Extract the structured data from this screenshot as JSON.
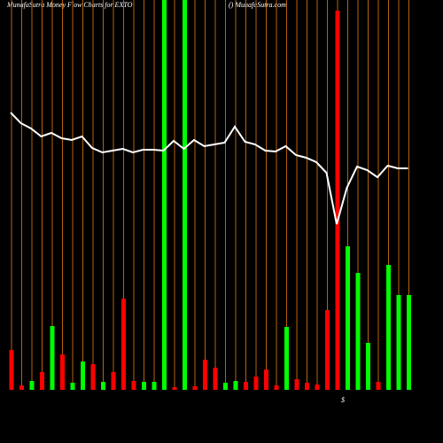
{
  "chart_data": {
    "type": "bar",
    "title": "MunafaSutra  Money Flow  Charts for EXTO",
    "subtitle": "() MunafaSutra.com",
    "annotation": "$",
    "categories": [
      null,
      null,
      null,
      null,
      null,
      null,
      null,
      null,
      null,
      null,
      null,
      null,
      null,
      null,
      null,
      null,
      null,
      null,
      null,
      null,
      null,
      null,
      null,
      null,
      null,
      null,
      null,
      null,
      null,
      null,
      null,
      null,
      null,
      null,
      null,
      null,
      null,
      null,
      null,
      null
    ],
    "ylim": [
      0,
      440
    ],
    "bar_colors": [
      "#ff0000",
      "#ff0000",
      "#00ff00",
      "#ff0000",
      "#00ff00",
      "#ff0000",
      "#00ff00",
      "#00ff00",
      "#ff0000",
      "#00ff00",
      "#ff0000",
      "#ff0000",
      "#ff0000",
      "#00ff00",
      "#00ff00",
      "#00ff00",
      "#ff0000",
      "#00ff00",
      "#ff0000",
      "#ff0000",
      "#ff0000",
      "#00ff00",
      "#00ff00",
      "#ff0000",
      "#ff0000",
      "#ff0000",
      "#ff0000",
      "#00ff00",
      "#ff0000",
      "#ff0000",
      "#ff0000",
      "#ff0000",
      "#ff0000",
      "#00ff00",
      "#00ff00",
      "#00ff00",
      "#ff0000",
      "#00ff00",
      "#00ff00",
      "#00ff00"
    ],
    "values": [
      45,
      5,
      10,
      20,
      72,
      40,
      8,
      32,
      29,
      9,
      20,
      103,
      10,
      9,
      9,
      440,
      3,
      440,
      4,
      34,
      25,
      8,
      10,
      9,
      15,
      23,
      5,
      71,
      12,
      8,
      6,
      90,
      428,
      162,
      132,
      53,
      9,
      141,
      107,
      107
    ],
    "series": [
      {
        "color": "#ffffff",
        "values": [
          313,
          301,
          295,
          286,
          290,
          284,
          282,
          286,
          273,
          268,
          270,
          272,
          268,
          271,
          271,
          270,
          281,
          272,
          282,
          275,
          277,
          279,
          297,
          280,
          277,
          270,
          269,
          275,
          265,
          262,
          257,
          245,
          187,
          228,
          252,
          248,
          240,
          253,
          250,
          250
        ]
      }
    ],
    "line_color": "#ffffff",
    "vline_color": "#b8620a"
  }
}
